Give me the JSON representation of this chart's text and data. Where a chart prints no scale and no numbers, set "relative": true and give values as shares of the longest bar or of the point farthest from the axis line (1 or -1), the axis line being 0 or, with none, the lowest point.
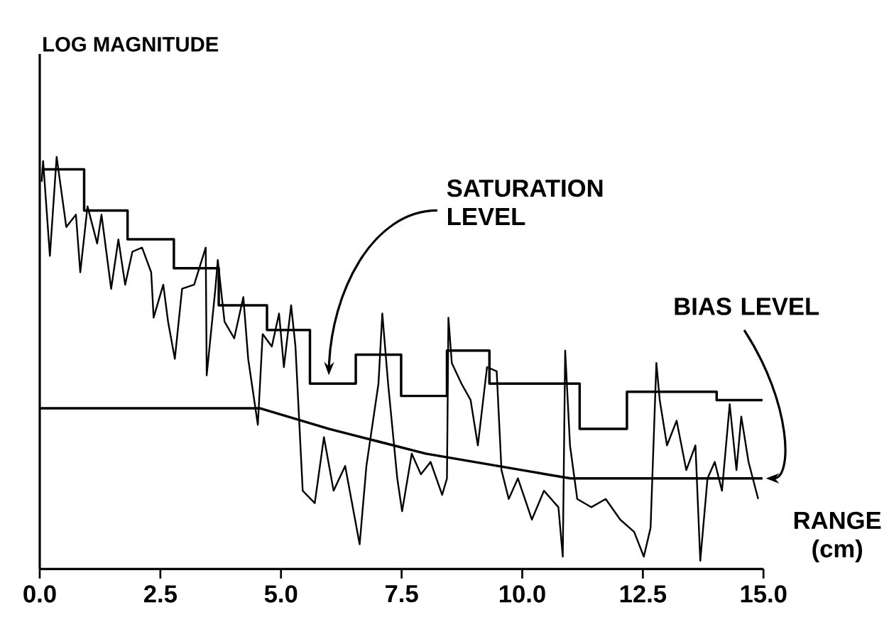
{
  "chart_data": {
    "type": "line",
    "relative": true,
    "xlabel": "RANGE (cm)",
    "xlim": [
      0,
      15
    ],
    "xticks": [
      {
        "value": 0,
        "label": "0.0"
      },
      {
        "value": 2.5,
        "label": "2.5"
      },
      {
        "value": 5,
        "label": "5.0"
      },
      {
        "value": 7.5,
        "label": "7.5"
      },
      {
        "value": 10,
        "label": "10.0"
      },
      {
        "value": 12.5,
        "label": "12.5"
      },
      {
        "value": 15,
        "label": "15.0"
      }
    ],
    "grid": false,
    "marker": "none",
    "line_style": "solid",
    "series": [
      {
        "color": "#000000",
        "x": [
          0.04,
          0.07,
          0.21,
          0.35,
          0.55,
          0.75,
          0.84,
          0.99,
          1.19,
          1.28,
          1.48,
          1.63,
          1.77,
          1.92,
          2.12,
          2.31,
          2.36,
          2.56,
          2.66,
          2.8,
          2.95,
          3.2,
          3.44,
          3.46,
          3.64,
          3.69,
          3.83,
          4.03,
          4.22,
          4.32,
          4.52,
          4.62,
          4.81,
          4.96,
          5.06,
          5.21,
          5.3,
          5.45,
          5.7,
          5.89,
          6.09,
          6.33,
          6.63,
          6.77,
          7.02,
          7.1,
          7.22,
          7.41,
          7.51,
          7.71,
          7.9,
          8.1,
          8.34,
          8.44,
          8.47,
          8.54,
          8.74,
          8.93,
          9.08,
          9.27,
          9.47,
          9.57,
          9.72,
          9.91,
          10.2,
          10.45,
          10.75,
          10.84,
          10.89,
          10.99,
          11.14,
          11.43,
          11.73,
          12.03,
          12.32,
          12.52,
          12.66,
          12.78,
          12.85,
          13.0,
          13.2,
          13.4,
          13.59,
          13.69,
          13.84,
          13.99,
          14.14,
          14.3,
          14.44,
          14.54,
          14.69,
          14.89
        ],
        "values": [
          0.94,
          0.99,
          0.76,
          1.0,
          0.83,
          0.86,
          0.72,
          0.88,
          0.79,
          0.86,
          0.68,
          0.8,
          0.69,
          0.77,
          0.78,
          0.72,
          0.61,
          0.69,
          0.6,
          0.51,
          0.68,
          0.69,
          0.78,
          0.47,
          0.68,
          0.75,
          0.6,
          0.56,
          0.66,
          0.51,
          0.35,
          0.57,
          0.54,
          0.62,
          0.49,
          0.64,
          0.54,
          0.19,
          0.16,
          0.32,
          0.19,
          0.25,
          0.06,
          0.25,
          0.45,
          0.62,
          0.45,
          0.22,
          0.14,
          0.28,
          0.23,
          0.26,
          0.18,
          0.22,
          0.61,
          0.5,
          0.45,
          0.41,
          0.3,
          0.49,
          0.48,
          0.24,
          0.17,
          0.22,
          0.12,
          0.19,
          0.15,
          0.03,
          0.53,
          0.3,
          0.17,
          0.15,
          0.17,
          0.12,
          0.09,
          0.03,
          0.1,
          0.5,
          0.41,
          0.3,
          0.36,
          0.24,
          0.3,
          0.02,
          0.22,
          0.26,
          0.19,
          0.4,
          0.24,
          0.37,
          0.26,
          0.17
        ]
      },
      {
        "type": "step",
        "color": "#000000",
        "x": [
          0.04,
          0.92,
          1.82,
          2.78,
          3.71,
          4.71,
          5.6,
          6.55,
          7.49,
          8.44,
          9.32,
          11.19,
          12.17,
          14.03,
          14.98
        ],
        "values": [
          0.97,
          0.87,
          0.8,
          0.73,
          0.64,
          0.58,
          0.45,
          0.52,
          0.42,
          0.53,
          0.45,
          0.34,
          0.43,
          0.41,
          0.41
        ]
      },
      {
        "color": "#000000",
        "x": [
          0,
          4.57,
          6.0,
          7.0,
          8.0,
          9.0,
          10.0,
          11.0,
          11.73,
          14.98
        ],
        "values": [
          0.39,
          0.39,
          0.34,
          0.31,
          0.28,
          0.26,
          0.24,
          0.22,
          0.22,
          0.22
        ]
      }
    ],
    "annotations": [
      {
        "text": "SATURATION LEVEL",
        "x": 5.99,
        "y": 0.47
      },
      {
        "text": "BIAS LEVEL",
        "x": 15.0,
        "y": 0.22
      },
      "LOG MAGNITUDE"
    ]
  }
}
